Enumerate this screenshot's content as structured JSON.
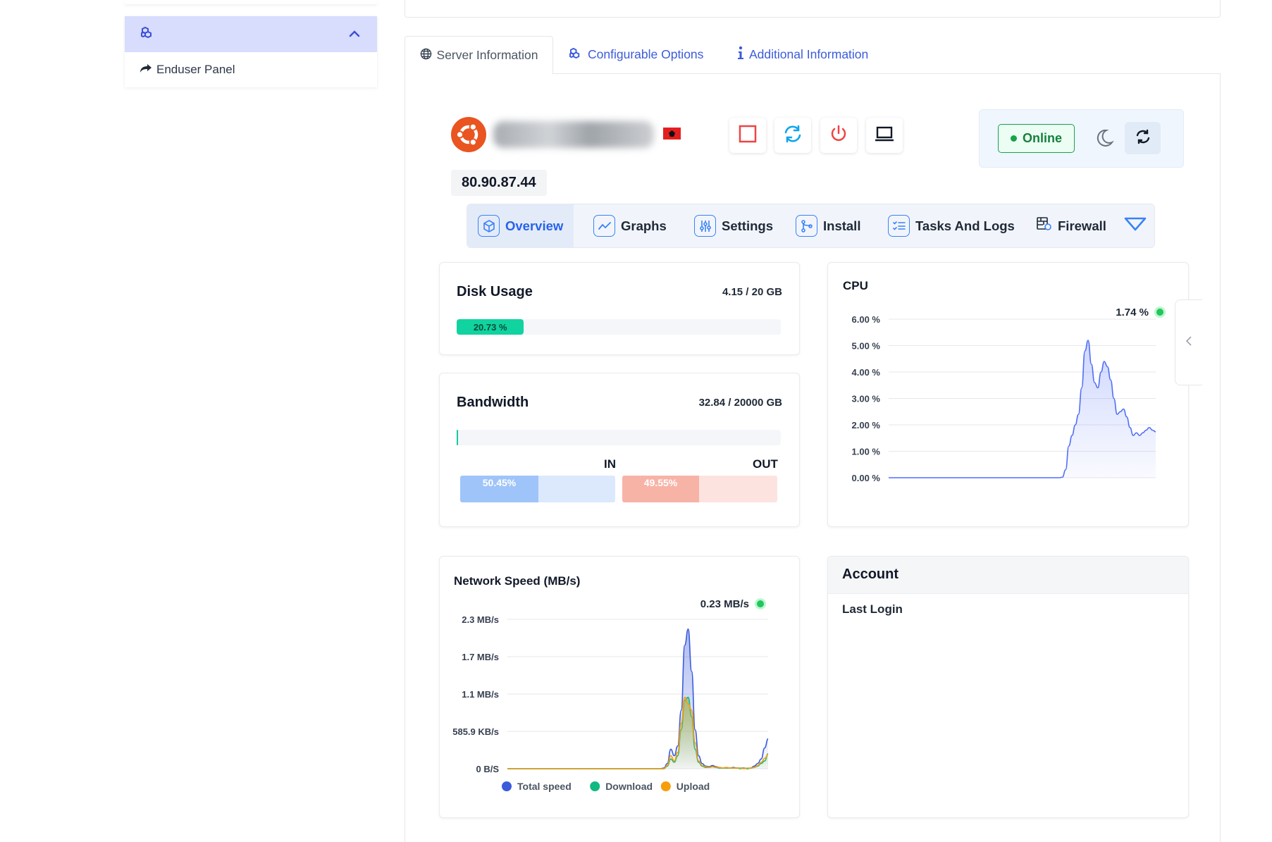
{
  "sidebar": {
    "link_label": "Enduser Panel"
  },
  "tabs": [
    {
      "label": "Server Information"
    },
    {
      "label": "Configurable Options"
    },
    {
      "label": "Additional Information"
    }
  ],
  "server": {
    "ip": "80.90.87.44",
    "status": "Online"
  },
  "nav": [
    {
      "label": "Overview"
    },
    {
      "label": "Graphs"
    },
    {
      "label": "Settings"
    },
    {
      "label": "Install"
    },
    {
      "label": "Tasks And Logs"
    },
    {
      "label": "Firewall"
    }
  ],
  "disk": {
    "title": "Disk Usage",
    "value": "4.15 / 20 GB",
    "percent_label": "20.73 %",
    "percent": 20.73
  },
  "bandwidth": {
    "title": "Bandwidth",
    "value": "32.84 / 20000 GB",
    "percent": 0.16,
    "in_label": "IN",
    "out_label": "OUT",
    "in_percent_label": "50.45%",
    "out_percent_label": "49.55%",
    "in_percent": 50.45,
    "out_percent": 49.55
  },
  "account": {
    "title": "Account",
    "last_login_label": "Last Login"
  },
  "chart_data": [
    {
      "type": "area",
      "title": "CPU",
      "current_label": "1.74 %",
      "y_ticks": [
        "6.00 %",
        "5.00 %",
        "4.00 %",
        "3.00 %",
        "2.00 %",
        "1.00 %",
        "0.00 %"
      ],
      "ylim": [
        0,
        6
      ],
      "series": [
        {
          "color": "#4f6ef7",
          "values": [
            0,
            0,
            0,
            0,
            0,
            0,
            0,
            0,
            0,
            0,
            0,
            0,
            0,
            0,
            0,
            0,
            0,
            0,
            0,
            0,
            0,
            0,
            0,
            0,
            0,
            0,
            0,
            0,
            0,
            0,
            0,
            0,
            0,
            0,
            0,
            0,
            0,
            0,
            0,
            0,
            0,
            0,
            0,
            0,
            0,
            0,
            0,
            0,
            0,
            0,
            0,
            0,
            0,
            0,
            0.02,
            0.3,
            1.2,
            1.6,
            2.0,
            2.4,
            3.4,
            4.8,
            5.2,
            4.3,
            3.6,
            3.4,
            4.0,
            4.4,
            4.2,
            3.7,
            3.0,
            2.4,
            2.5,
            2.6,
            2.3,
            1.9,
            1.6,
            1.7,
            1.6,
            1.7,
            1.8,
            1.9,
            1.8,
            1.74
          ]
        }
      ]
    },
    {
      "type": "area",
      "title": "Network Speed (MB/s)",
      "current_label": "0.23 MB/s",
      "y_ticks": [
        "2.3 MB/s",
        "1.7 MB/s",
        "1.1 MB/s",
        "585.9 KB/s",
        "0 B/S"
      ],
      "ylim": [
        0,
        2.3
      ],
      "legend": [
        "Total speed",
        "Download",
        "Upload"
      ],
      "series": [
        {
          "name": "Total speed",
          "color": "#3b5bdb",
          "values": [
            0,
            0,
            0,
            0,
            0,
            0,
            0,
            0,
            0,
            0,
            0,
            0,
            0,
            0,
            0,
            0,
            0,
            0,
            0,
            0,
            0,
            0,
            0,
            0,
            0,
            0,
            0,
            0,
            0,
            0,
            0,
            0,
            0,
            0,
            0,
            0,
            0,
            0,
            0,
            0,
            0,
            0,
            0,
            0,
            0,
            0.01,
            0.08,
            0.3,
            0.2,
            0.35,
            0.9,
            1.9,
            2.15,
            1.5,
            0.6,
            0.2,
            0.08,
            0.04,
            0.03,
            0.05,
            0.03,
            0.02,
            0.01,
            0.02,
            0.01,
            0.02,
            0.01,
            0.01,
            0.01,
            0,
            0.01,
            0.04,
            0.08,
            0.15,
            0.32,
            0.46
          ]
        },
        {
          "name": "Download",
          "color": "#10b981",
          "values": [
            0,
            0,
            0,
            0,
            0,
            0,
            0,
            0,
            0,
            0,
            0,
            0,
            0,
            0,
            0,
            0,
            0,
            0,
            0,
            0,
            0,
            0,
            0,
            0,
            0,
            0,
            0,
            0,
            0,
            0,
            0,
            0,
            0,
            0,
            0,
            0,
            0,
            0,
            0,
            0,
            0,
            0,
            0,
            0,
            0,
            0,
            0.04,
            0.15,
            0.1,
            0.2,
            0.6,
            1.05,
            1.1,
            0.8,
            0.3,
            0.1,
            0.04,
            0.02,
            0.02,
            0.03,
            0.02,
            0.01,
            0.01,
            0.01,
            0.01,
            0.01,
            0.01,
            0,
            0.01,
            0,
            0.01,
            0.02,
            0.04,
            0.08,
            0.12,
            0.23
          ]
        },
        {
          "name": "Upload",
          "color": "#f59e0b",
          "values": [
            0,
            0,
            0,
            0,
            0,
            0,
            0,
            0,
            0,
            0,
            0,
            0,
            0,
            0,
            0,
            0,
            0,
            0,
            0,
            0,
            0,
            0,
            0,
            0,
            0,
            0,
            0,
            0,
            0,
            0,
            0,
            0,
            0,
            0,
            0,
            0,
            0,
            0,
            0,
            0,
            0,
            0,
            0,
            0,
            0,
            0,
            0.05,
            0.2,
            0.12,
            0.25,
            0.7,
            1.1,
            1.0,
            0.9,
            0.4,
            0.12,
            0.05,
            0.03,
            0.02,
            0.03,
            0.02,
            0.02,
            0.01,
            0.02,
            0.01,
            0.01,
            0.01,
            0.01,
            0,
            0.01,
            0.01,
            0.02,
            0.05,
            0.1,
            0.16,
            0.22
          ]
        }
      ]
    }
  ]
}
